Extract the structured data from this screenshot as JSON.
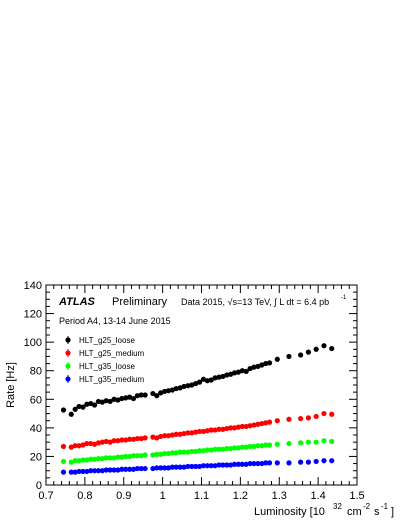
{
  "chart_data": {
    "type": "scatter",
    "title": "",
    "xlabel": "Luminosity [10",
    "xlabel_exp": "32",
    "xlabel_unit": "cm",
    "xlabel_unit_exp": "-2",
    "xlabel_s": "s",
    "xlabel_s_exp": "-1",
    "xlabel_close": "]",
    "ylabel": "Rate [Hz]",
    "xlim": [
      0.7,
      1.5
    ],
    "ylim": [
      0,
      140
    ],
    "xticks": [
      "0.7",
      "0.8",
      "0.9",
      "1",
      "1.1",
      "1.2",
      "1.3",
      "1.4",
      "1.5"
    ],
    "yticks": [
      "0",
      "20",
      "40",
      "60",
      "80",
      "100",
      "120",
      "140"
    ],
    "grid": false,
    "legend_position": "left",
    "annotations": {
      "atlas": "ATLAS",
      "preliminary": "Preliminary",
      "data_label": "Data 2015, √s=13 TeV, ∫ L dt = 6.4 pb",
      "data_label_exp": "-1",
      "period": "Period A4, 13-14 June 2015"
    },
    "x": [
      0.745,
      0.765,
      0.775,
      0.785,
      0.795,
      0.805,
      0.815,
      0.825,
      0.835,
      0.845,
      0.855,
      0.865,
      0.875,
      0.885,
      0.895,
      0.905,
      0.915,
      0.925,
      0.935,
      0.945,
      0.955,
      0.975,
      0.985,
      0.995,
      1.005,
      1.015,
      1.025,
      1.035,
      1.045,
      1.055,
      1.065,
      1.075,
      1.085,
      1.095,
      1.105,
      1.115,
      1.125,
      1.135,
      1.145,
      1.155,
      1.165,
      1.175,
      1.185,
      1.195,
      1.205,
      1.215,
      1.225,
      1.235,
      1.245,
      1.255,
      1.265,
      1.275,
      1.295,
      1.325,
      1.355,
      1.375,
      1.395,
      1.415,
      1.435
    ],
    "series": [
      {
        "name": "HLT_g25_loose",
        "color": "#000000",
        "values": [
          52.5,
          49.5,
          53.0,
          55.0,
          54.5,
          56.5,
          57.0,
          56.0,
          58.5,
          58.0,
          59.0,
          58.5,
          60.0,
          59.5,
          60.5,
          61.0,
          61.5,
          60.5,
          62.5,
          63.0,
          63.0,
          64.0,
          62.5,
          64.5,
          65.5,
          66.0,
          66.5,
          67.5,
          68.0,
          69.0,
          69.5,
          70.0,
          71.0,
          72.0,
          74.0,
          73.0,
          73.5,
          75.0,
          75.5,
          76.0,
          77.0,
          77.5,
          78.5,
          79.0,
          80.0,
          79.5,
          81.5,
          82.5,
          83.0,
          84.0,
          85.0,
          85.5,
          88.0,
          90.0,
          91.0,
          93.0,
          95.0,
          97.5,
          95.5
        ]
      },
      {
        "name": "HLT_g25_medium",
        "color": "#ff0000",
        "values": [
          27.0,
          26.5,
          27.5,
          27.5,
          28.0,
          29.0,
          29.0,
          28.5,
          29.5,
          30.0,
          30.5,
          30.0,
          31.0,
          31.0,
          31.5,
          31.5,
          32.0,
          32.0,
          32.5,
          32.5,
          33.0,
          33.5,
          33.0,
          34.0,
          34.5,
          34.5,
          35.0,
          35.5,
          35.5,
          36.0,
          36.5,
          36.5,
          37.0,
          37.5,
          37.5,
          38.0,
          38.5,
          38.5,
          39.0,
          39.0,
          39.5,
          40.0,
          40.0,
          40.5,
          41.0,
          41.0,
          41.5,
          42.0,
          42.5,
          43.0,
          43.5,
          44.0,
          45.0,
          46.0,
          46.5,
          47.0,
          48.0,
          50.0,
          49.5
        ]
      },
      {
        "name": "HLT_g35_loose",
        "color": "#00ff00",
        "values": [
          16.5,
          16.0,
          17.0,
          17.0,
          17.5,
          17.5,
          18.0,
          18.0,
          18.5,
          18.5,
          19.0,
          19.0,
          19.0,
          19.5,
          19.5,
          20.0,
          20.0,
          20.5,
          20.5,
          20.5,
          21.0,
          21.0,
          21.5,
          21.5,
          22.0,
          22.0,
          22.5,
          22.5,
          23.0,
          23.0,
          23.0,
          23.5,
          23.5,
          24.0,
          24.0,
          24.5,
          24.5,
          25.0,
          25.0,
          25.0,
          25.5,
          25.5,
          26.0,
          26.0,
          26.5,
          26.5,
          27.0,
          27.0,
          27.5,
          27.5,
          28.0,
          28.0,
          28.5,
          29.0,
          29.5,
          30.0,
          30.0,
          31.0,
          30.5
        ]
      },
      {
        "name": "HLT_g35_medium",
        "color": "#0000ff",
        "values": [
          9.0,
          9.0,
          9.0,
          9.5,
          9.5,
          9.5,
          10.0,
          10.0,
          10.0,
          10.0,
          10.5,
          10.5,
          10.5,
          10.5,
          11.0,
          11.0,
          11.0,
          11.0,
          11.5,
          11.5,
          11.5,
          11.5,
          12.0,
          12.0,
          12.0,
          12.0,
          12.5,
          12.5,
          12.5,
          12.5,
          13.0,
          13.0,
          13.0,
          13.0,
          13.5,
          13.5,
          13.5,
          13.5,
          14.0,
          14.0,
          14.0,
          14.0,
          14.5,
          14.5,
          14.5,
          14.5,
          15.0,
          15.0,
          15.0,
          15.0,
          15.5,
          15.5,
          15.5,
          15.5,
          16.0,
          16.0,
          16.5,
          17.0,
          17.0
        ]
      }
    ]
  }
}
